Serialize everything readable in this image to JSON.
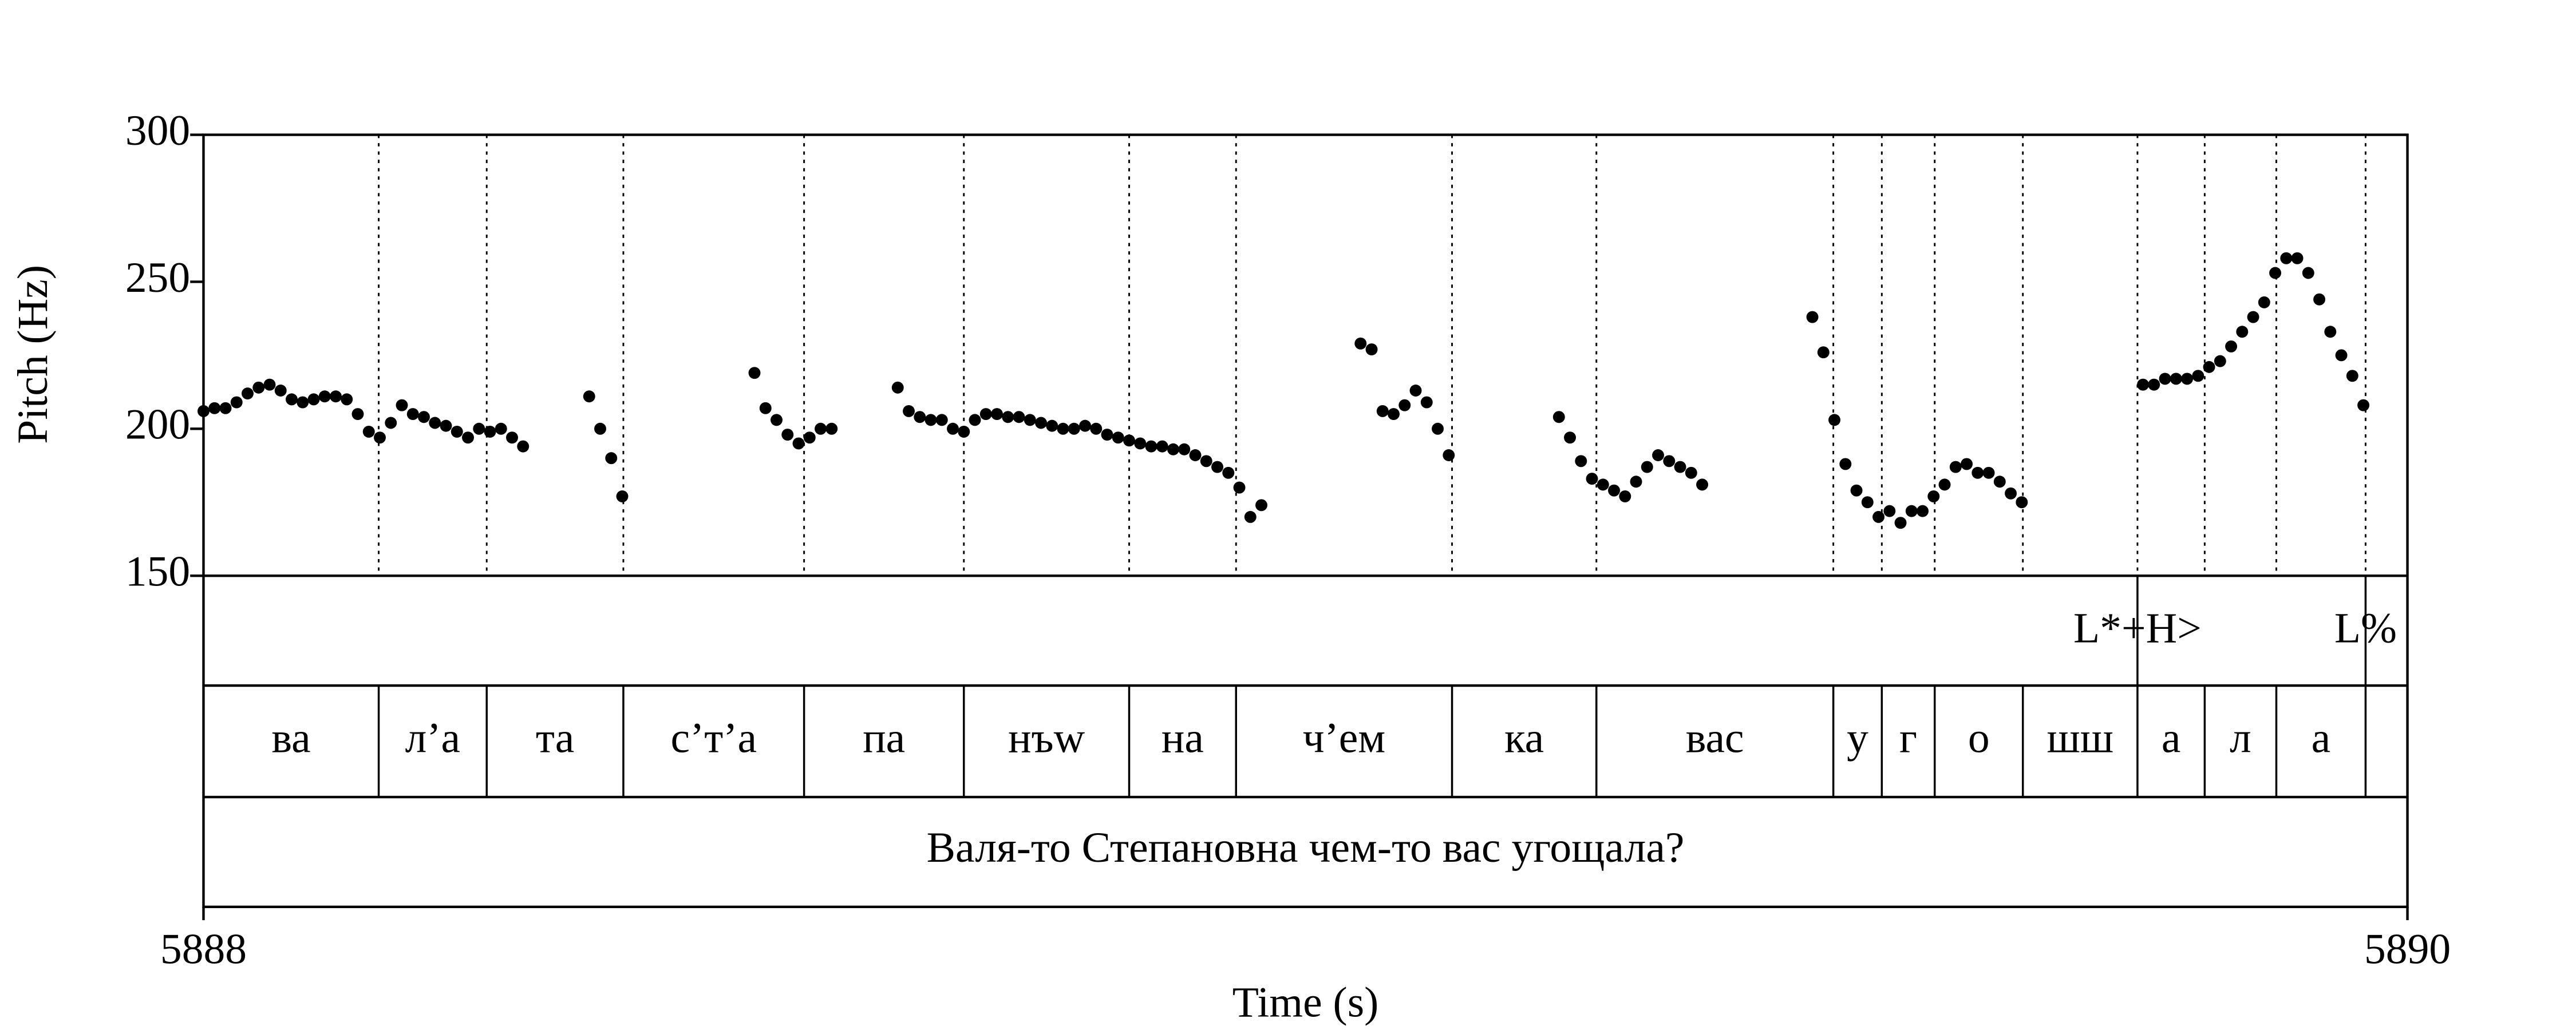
{
  "chart_data": {
    "type": "scatter",
    "xlabel": "Time (s)",
    "ylabel": "Pitch (Hz)",
    "xlim": [
      5888,
      5890
    ],
    "xticks": [
      5888,
      5890
    ],
    "ylim": [
      150,
      300
    ],
    "yticks": [
      150,
      200,
      250,
      300
    ],
    "color": "#000000",
    "x": [
      5888.0,
      5888.01,
      5888.02,
      5888.03,
      5888.04,
      5888.05,
      5888.06,
      5888.07,
      5888.08,
      5888.09,
      5888.1,
      5888.11,
      5888.12,
      5888.13,
      5888.14,
      5888.15,
      5888.16,
      5888.17,
      5888.18,
      5888.19,
      5888.2,
      5888.21,
      5888.22,
      5888.23,
      5888.24,
      5888.25,
      5888.26,
      5888.27,
      5888.28,
      5888.29,
      5888.35,
      5888.36,
      5888.37,
      5888.38,
      5888.5,
      5888.51,
      5888.52,
      5888.53,
      5888.54,
      5888.55,
      5888.56,
      5888.57,
      5888.63,
      5888.64,
      5888.65,
      5888.66,
      5888.67,
      5888.68,
      5888.69,
      5888.7,
      5888.71,
      5888.72,
      5888.73,
      5888.74,
      5888.75,
      5888.76,
      5888.77,
      5888.78,
      5888.79,
      5888.8,
      5888.81,
      5888.82,
      5888.83,
      5888.84,
      5888.85,
      5888.86,
      5888.87,
      5888.88,
      5888.89,
      5888.9,
      5888.91,
      5888.92,
      5888.93,
      5888.94,
      5888.95,
      5888.96,
      5889.05,
      5889.06,
      5889.07,
      5889.08,
      5889.09,
      5889.1,
      5889.11,
      5889.12,
      5889.13,
      5889.23,
      5889.24,
      5889.25,
      5889.26,
      5889.27,
      5889.28,
      5889.29,
      5889.3,
      5889.31,
      5889.32,
      5889.33,
      5889.34,
      5889.35,
      5889.36,
      5889.46,
      5889.47,
      5889.48,
      5889.49,
      5889.5,
      5889.51,
      5889.52,
      5889.53,
      5889.54,
      5889.55,
      5889.56,
      5889.57,
      5889.58,
      5889.59,
      5889.6,
      5889.61,
      5889.62,
      5889.63,
      5889.64,
      5889.65,
      5889.76,
      5889.77,
      5889.78,
      5889.79,
      5889.8,
      5889.81,
      5889.82,
      5889.83,
      5889.84,
      5889.85,
      5889.86,
      5889.87,
      5889.88,
      5889.89,
      5889.9,
      5889.91,
      5889.92,
      5889.93,
      5889.94,
      5889.95,
      5889.96
    ],
    "values": [
      206,
      207,
      207,
      209,
      212,
      214,
      215,
      213,
      210,
      209,
      210,
      211,
      211,
      210,
      205,
      199,
      197,
      202,
      208,
      205,
      204,
      202,
      201,
      199,
      197,
      200,
      199,
      200,
      197,
      194,
      211,
      200,
      190,
      177,
      219,
      207,
      203,
      198,
      195,
      197,
      200,
      200,
      214,
      206,
      204,
      203,
      203,
      200,
      199,
      203,
      205,
      205,
      204,
      204,
      203,
      202,
      201,
      200,
      200,
      201,
      200,
      198,
      197,
      196,
      195,
      194,
      194,
      193,
      193,
      191,
      189,
      187,
      185,
      180,
      170,
      174,
      229,
      227,
      206,
      205,
      208,
      213,
      209,
      200,
      191,
      204,
      197,
      189,
      183,
      181,
      179,
      177,
      182,
      187,
      191,
      189,
      187,
      185,
      181,
      238,
      226,
      203,
      188,
      179,
      175,
      170,
      172,
      168,
      172,
      172,
      177,
      181,
      187,
      188,
      185,
      185,
      182,
      178,
      175,
      215,
      215,
      217,
      217,
      217,
      218,
      221,
      223,
      228,
      233,
      238,
      243,
      253,
      258,
      258,
      253,
      244,
      233,
      225,
      218,
      208
    ],
    "tones": {
      "times": [
        5889.755,
        5889.962
      ],
      "labels": [
        "L*+H>",
        "L%"
      ]
    },
    "syllables": {
      "boundaries": [
        5888.159,
        5888.257,
        5888.381,
        5888.545,
        5888.69,
        5888.84,
        5888.937,
        5889.133,
        5889.264,
        5889.479,
        5889.523,
        5889.571,
        5889.651,
        5889.755,
        5889.816,
        5889.881,
        5889.962
      ],
      "labels": [
        "ва",
        "л’а",
        "та",
        "с’т’а",
        "па",
        "нъw",
        "на",
        "ч’ем",
        "ка",
        "вас",
        "у",
        "г",
        "о",
        "шш",
        "а",
        "л",
        "а",
        null
      ]
    },
    "sentence": "Валя-то Степановна чем-то вас угощала?"
  }
}
